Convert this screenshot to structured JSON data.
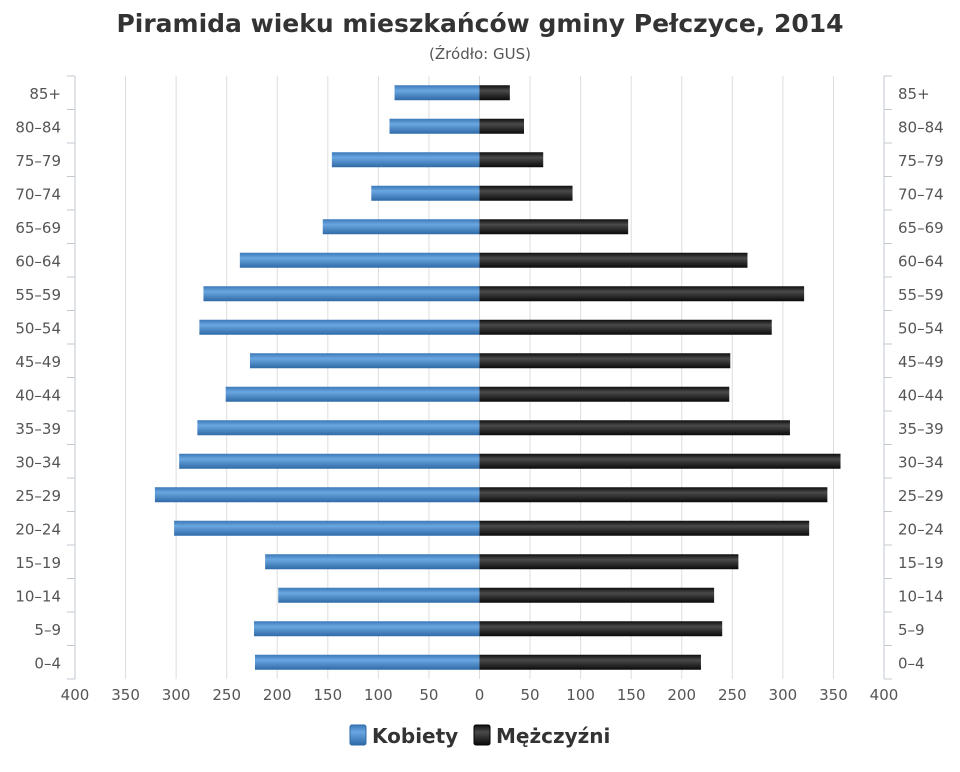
{
  "chart_data": {
    "type": "bar",
    "orientation": "horizontal-population-pyramid",
    "title": "Piramida wieku mieszkańców gminy Pełczyce, 2014",
    "subtitle": "(Źródło: GUS)",
    "categories": [
      "0–4",
      "5–9",
      "10–14",
      "15–19",
      "20–24",
      "25–29",
      "30–34",
      "35–39",
      "40–44",
      "45–49",
      "50–54",
      "55–59",
      "60–64",
      "65–69",
      "70–74",
      "75–79",
      "80–84",
      "85+"
    ],
    "series": [
      {
        "name": "Kobiety",
        "side": "left",
        "color": "#4a8fd1",
        "values": [
          222,
          223,
          199,
          212,
          302,
          321,
          297,
          279,
          251,
          227,
          277,
          273,
          237,
          155,
          107,
          146,
          89,
          84
        ]
      },
      {
        "name": "Mężczyźni",
        "side": "right",
        "color": "#1e1e1e",
        "values": [
          219,
          240,
          232,
          256,
          326,
          344,
          357,
          307,
          247,
          248,
          289,
          321,
          265,
          147,
          92,
          63,
          44,
          30
        ]
      }
    ],
    "xlim": [
      -400,
      400
    ],
    "x_ticks": [
      -400,
      -350,
      -300,
      -250,
      -200,
      -150,
      -100,
      -50,
      0,
      50,
      100,
      150,
      200,
      250,
      300,
      350,
      400
    ],
    "x_tick_labels": [
      "400",
      "350",
      "300",
      "250",
      "200",
      "150",
      "100",
      "50",
      "0",
      "50",
      "100",
      "150",
      "200",
      "250",
      "300",
      "350",
      "400"
    ],
    "xlabel": "",
    "ylabel": "",
    "grid": true,
    "legend": "bottom-center"
  }
}
